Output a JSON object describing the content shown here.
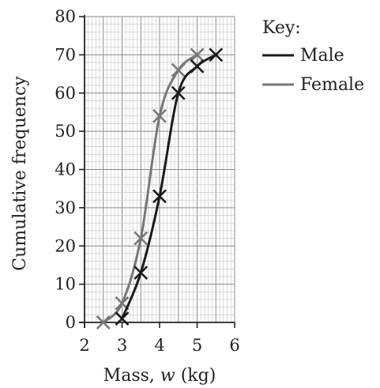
{
  "chart_data": {
    "type": "line",
    "title": "",
    "xlabel_prefix": "Mass, ",
    "xlabel_var": "w",
    "xlabel_suffix": " (kg)",
    "ylabel": "Cumulative frequency",
    "xlim": [
      2,
      6
    ],
    "ylim": [
      0,
      80
    ],
    "x_ticks": [
      2,
      3,
      4,
      5,
      6
    ],
    "y_ticks": [
      0,
      10,
      20,
      30,
      40,
      50,
      60,
      70,
      80
    ],
    "grid": true,
    "legend_title": "Key:",
    "legend_position": "top-right",
    "series": [
      {
        "name": "Male",
        "color": "#1a1a1a",
        "points": [
          [
            3,
            1
          ],
          [
            3.5,
            13
          ],
          [
            4,
            33
          ],
          [
            4.5,
            60
          ],
          [
            5,
            67
          ],
          [
            5.5,
            70
          ]
        ]
      },
      {
        "name": "Female",
        "color": "#777777",
        "points": [
          [
            2.5,
            0
          ],
          [
            3,
            5
          ],
          [
            3.5,
            22
          ],
          [
            4,
            54
          ],
          [
            4.5,
            66
          ],
          [
            5,
            70
          ]
        ]
      }
    ]
  }
}
